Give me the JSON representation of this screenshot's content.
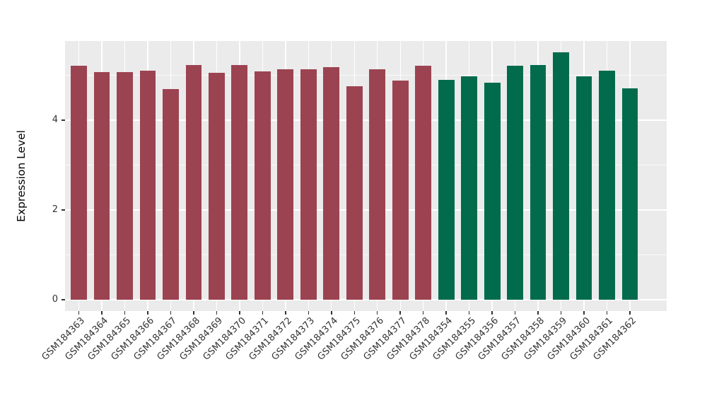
{
  "chart_data": {
    "type": "bar",
    "title": "",
    "xlabel": "",
    "ylabel": "Expression Level",
    "legend": false,
    "grid": true,
    "ylim": [
      -0.28,
      5.79
    ],
    "yticks": [
      0,
      2,
      4
    ],
    "minor_yticks": [
      1,
      3,
      5
    ],
    "categories": [
      "GSM184363",
      "GSM184364",
      "GSM184365",
      "GSM184366",
      "GSM184367",
      "GSM184368",
      "GSM184369",
      "GSM184370",
      "GSM184371",
      "GSM184372",
      "GSM184373",
      "GSM184374",
      "GSM184375",
      "GSM184376",
      "GSM184377",
      "GSM184378",
      "GSM184354",
      "GSM184355",
      "GSM184356",
      "GSM184357",
      "GSM184358",
      "GSM184359",
      "GSM184360",
      "GSM184361",
      "GSM184362"
    ],
    "values": [
      5.21,
      5.07,
      5.07,
      5.1,
      4.7,
      5.23,
      5.05,
      5.23,
      5.09,
      5.14,
      5.14,
      5.18,
      4.76,
      5.13,
      4.88,
      5.22,
      4.9,
      4.98,
      4.84,
      5.22,
      5.23,
      5.51,
      4.98,
      5.1,
      4.71
    ],
    "bar_colors": [
      "#9C4351",
      "#9C4351",
      "#9C4351",
      "#9C4351",
      "#9C4351",
      "#9C4351",
      "#9C4351",
      "#9C4351",
      "#9C4351",
      "#9C4351",
      "#9C4351",
      "#9C4351",
      "#9C4351",
      "#9C4351",
      "#9C4351",
      "#9C4351",
      "#016B4C",
      "#016B4C",
      "#016B4C",
      "#016B4C",
      "#016B4C",
      "#016B4C",
      "#016B4C",
      "#016B4C",
      "#016B4C"
    ],
    "colors": {
      "group_red": "#9C4351",
      "group_green": "#016B4C",
      "panel_background": "#EBEBEB",
      "grid_major": "#FFFFFF",
      "grid_minor": "#FFFFFF",
      "tick_marks": "#333333",
      "tick_labels": "#333333",
      "figure_background": "#FFFFFF"
    }
  }
}
